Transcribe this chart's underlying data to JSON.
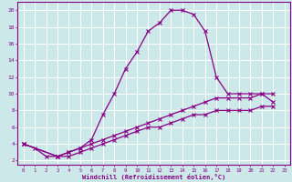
{
  "background_color": "#cce8e8",
  "grid_color": "#aadddd",
  "line_color": "#880088",
  "xlabel": "Windchill (Refroidissement éolien,°C)",
  "ylabel_ticks": [
    2,
    4,
    6,
    8,
    10,
    12,
    14,
    16,
    18,
    20
  ],
  "xlabel_ticks": [
    0,
    1,
    2,
    3,
    4,
    5,
    6,
    7,
    8,
    9,
    10,
    11,
    12,
    13,
    14,
    15,
    16,
    17,
    18,
    19,
    20,
    21,
    22,
    23
  ],
  "xlim": [
    -0.5,
    23.5
  ],
  "ylim": [
    1.5,
    21
  ],
  "line1_x": [
    0,
    1,
    2,
    3,
    4,
    5,
    6,
    7,
    8,
    9,
    10,
    11,
    12,
    13,
    14,
    15,
    16,
    17,
    18,
    19,
    20,
    21,
    22
  ],
  "line1_y": [
    4.0,
    3.5,
    2.5,
    2.5,
    3.0,
    3.5,
    4.5,
    7.5,
    10.0,
    13.0,
    15.0,
    17.5,
    18.5,
    20.0,
    20.0,
    19.5,
    17.5,
    12.0,
    10.0,
    10.0,
    10.0,
    10.0,
    9.0
  ],
  "line2_x": [
    0,
    3,
    4,
    5,
    6,
    7,
    8,
    9,
    10,
    11,
    12,
    13,
    14,
    15,
    16,
    17,
    18,
    19,
    20,
    21,
    22
  ],
  "line2_y": [
    4.0,
    2.5,
    3.0,
    3.5,
    4.0,
    4.5,
    5.0,
    5.5,
    6.0,
    6.5,
    7.0,
    7.5,
    8.0,
    8.5,
    9.0,
    9.5,
    9.5,
    9.5,
    9.5,
    10.0,
    10.0
  ],
  "line3_x": [
    0,
    3,
    4,
    5,
    6,
    7,
    8,
    9,
    10,
    11,
    12,
    13,
    14,
    15,
    16,
    17,
    18,
    19,
    20,
    21,
    22
  ],
  "line3_y": [
    4.0,
    2.5,
    2.5,
    3.0,
    3.5,
    4.0,
    4.5,
    5.0,
    5.5,
    6.0,
    6.0,
    6.5,
    7.0,
    7.5,
    7.5,
    8.0,
    8.0,
    8.0,
    8.0,
    8.5,
    8.5
  ]
}
